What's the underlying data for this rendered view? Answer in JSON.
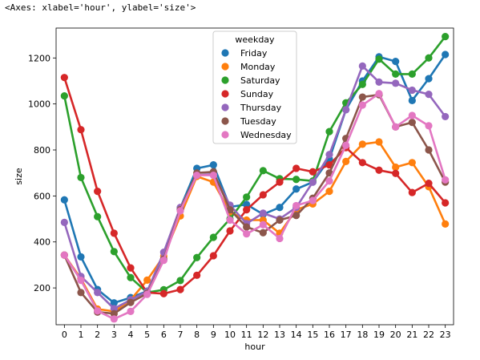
{
  "repr_text": "<Axes: xlabel='hour', ylabel='size'>",
  "chart_data": {
    "type": "line",
    "xlabel": "hour",
    "ylabel": "size",
    "categories": [
      "0",
      "1",
      "2",
      "3",
      "4",
      "5",
      "6",
      "7",
      "8",
      "9",
      "10",
      "11",
      "12",
      "13",
      "14",
      "15",
      "16",
      "17",
      "18",
      "19",
      "20",
      "21",
      "22",
      "23"
    ],
    "ylim": [
      40,
      1330
    ],
    "yticks": [
      200,
      400,
      600,
      800,
      1000,
      1200
    ],
    "legend": {
      "title": "weekday",
      "placement": "upper-center"
    },
    "series": [
      {
        "name": "Friday",
        "color": "#1f77b4",
        "values": [
          583,
          335,
          193,
          135,
          158,
          186,
          323,
          548,
          720,
          735,
          552,
          563,
          520,
          550,
          630,
          660,
          760,
          975,
          1100,
          1205,
          1185,
          1015,
          1110,
          1215
        ]
      },
      {
        "name": "Monday",
        "color": "#ff7f0e",
        "values": [
          343,
          240,
          108,
          98,
          148,
          234,
          338,
          513,
          685,
          660,
          530,
          495,
          495,
          438,
          540,
          565,
          620,
          750,
          825,
          835,
          725,
          745,
          640,
          478
        ]
      },
      {
        "name": "Saturday",
        "color": "#2ca02c",
        "values": [
          1035,
          680,
          510,
          358,
          245,
          180,
          192,
          232,
          332,
          420,
          500,
          595,
          710,
          675,
          672,
          665,
          880,
          1005,
          1085,
          1195,
          1130,
          1130,
          1200,
          1293
        ]
      },
      {
        "name": "Sunday",
        "color": "#d62728",
        "values": [
          1115,
          888,
          620,
          438,
          287,
          180,
          175,
          193,
          255,
          340,
          448,
          540,
          605,
          660,
          720,
          705,
          735,
          810,
          745,
          712,
          698,
          615,
          655,
          570
        ]
      },
      {
        "name": "Thursday",
        "color": "#9467bd",
        "values": [
          485,
          250,
          180,
          110,
          148,
          185,
          355,
          550,
          690,
          695,
          560,
          480,
          525,
          500,
          550,
          660,
          780,
          975,
          1165,
          1095,
          1090,
          1060,
          1042,
          945
        ]
      },
      {
        "name": "Tuesday",
        "color": "#8c564b",
        "values": [
          343,
          180,
          95,
          88,
          137,
          176,
          325,
          540,
          700,
          705,
          540,
          465,
          440,
          495,
          515,
          590,
          700,
          850,
          1030,
          1040,
          900,
          920,
          800,
          660
        ]
      },
      {
        "name": "Wednesday",
        "color": "#e377c2",
        "values": [
          343,
          233,
          100,
          65,
          98,
          172,
          320,
          535,
          690,
          690,
          495,
          435,
          475,
          415,
          558,
          580,
          665,
          820,
          995,
          1045,
          900,
          950,
          905,
          670
        ]
      }
    ]
  }
}
